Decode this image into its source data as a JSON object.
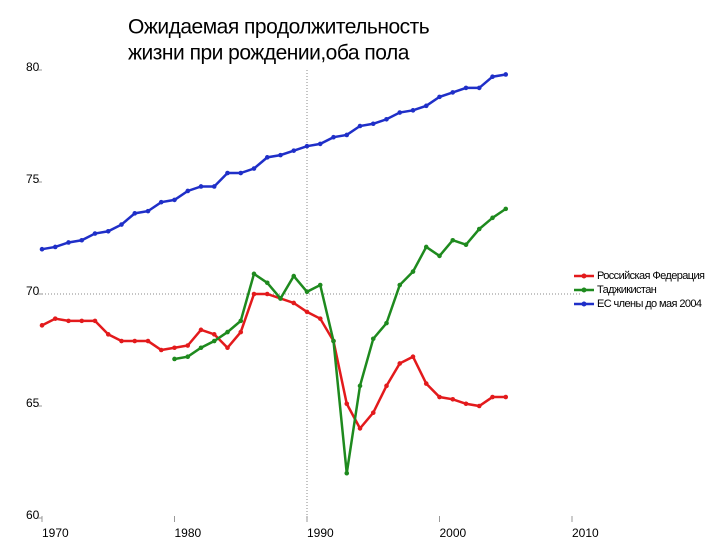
{
  "chart_data": {
    "type": "line",
    "title": [
      "Ожидаемая продолжительность",
      "жизни при рождении,оба пола"
    ],
    "x": [
      1970,
      1971,
      1972,
      1973,
      1974,
      1975,
      1976,
      1977,
      1978,
      1979,
      1980,
      1981,
      1982,
      1983,
      1984,
      1985,
      1986,
      1987,
      1988,
      1989,
      1990,
      1991,
      1992,
      1993,
      1994,
      1995,
      1996,
      1997,
      1998,
      1999,
      2000,
      2001,
      2002,
      2003,
      2004,
      2005
    ],
    "series": [
      {
        "name": "Российская Федерация",
        "color": "#e31a1c",
        "values": [
          68.6,
          68.9,
          68.8,
          68.8,
          68.8,
          68.2,
          67.9,
          67.9,
          67.9,
          67.5,
          67.6,
          67.7,
          68.4,
          68.2,
          67.6,
          68.3,
          70.0,
          70.0,
          69.8,
          69.6,
          69.2,
          68.9,
          67.9,
          65.1,
          64.0,
          64.7,
          65.9,
          66.9,
          67.2,
          66.0,
          65.4,
          65.3,
          65.1,
          65.0,
          65.4,
          65.4
        ]
      },
      {
        "name": "Таджикистан",
        "color": "#1e8a1e",
        "values": [
          null,
          null,
          null,
          null,
          null,
          null,
          null,
          null,
          null,
          null,
          67.1,
          67.2,
          67.6,
          67.9,
          68.3,
          68.8,
          70.9,
          70.5,
          69.8,
          70.8,
          70.1,
          70.4,
          67.9,
          62.0,
          65.9,
          68.0,
          68.7,
          70.4,
          71.0,
          72.1,
          71.7,
          72.4,
          72.2,
          72.9,
          73.4,
          73.8
        ]
      },
      {
        "name": "ЕС члены до мая 2004",
        "color": "#1f2fc8",
        "values": [
          72.0,
          72.1,
          72.3,
          72.4,
          72.7,
          72.8,
          73.1,
          73.6,
          73.7,
          74.1,
          74.2,
          74.6,
          74.8,
          74.8,
          75.4,
          75.4,
          75.6,
          76.1,
          76.2,
          76.4,
          76.6,
          76.7,
          77.0,
          77.1,
          77.5,
          77.6,
          77.8,
          78.1,
          78.2,
          78.4,
          78.8,
          79.0,
          79.2,
          79.2,
          79.7,
          79.8
        ]
      }
    ],
    "xlim": [
      1970,
      2010
    ],
    "xticks": [
      1970,
      1980,
      1990,
      2000,
      2010
    ],
    "ylim": [
      60,
      80
    ],
    "yticks": [
      60,
      65,
      70,
      75,
      80
    ],
    "crosshair": {
      "x": 1990,
      "y": 70
    },
    "legend": "right"
  }
}
